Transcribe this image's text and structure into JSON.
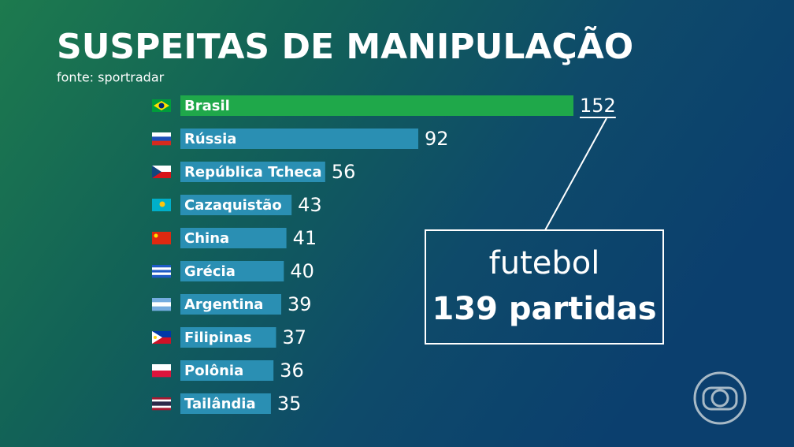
{
  "chart_data": {
    "type": "bar",
    "orientation": "horizontal",
    "title": "SUSPEITAS DE MANIPULAÇÃO",
    "subtitle": "fonte: sportradar",
    "categories": [
      "Brasil",
      "Rússia",
      "República Tcheca",
      "Cazaquistão",
      "China",
      "Grécia",
      "Argentina",
      "Filipinas",
      "Polônia",
      "Tailândia"
    ],
    "values": [
      152,
      92,
      56,
      43,
      41,
      40,
      39,
      37,
      36,
      35
    ],
    "colors": [
      "#1fa84a",
      "#2a8fb3",
      "#2a8fb3",
      "#2a8fb3",
      "#2a8fb3",
      "#2a8fb3",
      "#2a8fb3",
      "#2a8fb3",
      "#2a8fb3",
      "#2a8fb3"
    ],
    "annotation": {
      "line1": "futebol",
      "line2": "139 partidas"
    }
  }
}
